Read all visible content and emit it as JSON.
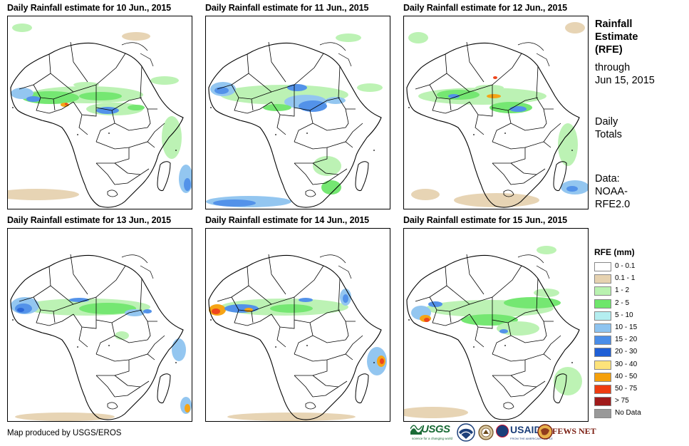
{
  "panels": [
    {
      "title": "Daily Rainfall estimate for 10 Jun., 2015"
    },
    {
      "title": "Daily Rainfall estimate for 11 Jun., 2015"
    },
    {
      "title": "Daily Rainfall estimate for 12 Jun., 2015"
    },
    {
      "title": "Daily Rainfall estimate for 13 Jun., 2015"
    },
    {
      "title": "Daily Rainfall estimate for 14 Jun., 2015"
    },
    {
      "title": "Daily Rainfall estimate for 15 Jun., 2015"
    }
  ],
  "sidebar": {
    "title_line1": "Rainfall",
    "title_line2": "Estimate",
    "title_line3": "(RFE)",
    "through_label": "through",
    "through_date": "Jun 15, 2015",
    "totals_line1": "Daily",
    "totals_line2": "Totals",
    "data_line1": "Data:",
    "data_line2": "NOAA-",
    "data_line3": "RFE2.0"
  },
  "legend": {
    "title": "RFE (mm)",
    "items": [
      {
        "label": "0 - 0.1",
        "color": "#ffffff"
      },
      {
        "label": "0.1 - 1",
        "color": "#e6d2b0"
      },
      {
        "label": "1 - 2",
        "color": "#b9f2b0"
      },
      {
        "label": "2 - 5",
        "color": "#6ee66b"
      },
      {
        "label": "5 - 10",
        "color": "#b4eef0"
      },
      {
        "label": "10 - 15",
        "color": "#8ec4f0"
      },
      {
        "label": "15 - 20",
        "color": "#4a8de8"
      },
      {
        "label": "20 - 30",
        "color": "#1f5fd6"
      },
      {
        "label": "30 - 40",
        "color": "#fde37a"
      },
      {
        "label": "40 - 50",
        "color": "#f5a00a"
      },
      {
        "label": "50 - 75",
        "color": "#ee3c10"
      },
      {
        "label": "> 75",
        "color": "#a01a1a"
      },
      {
        "label": "No Data",
        "color": "#999999"
      }
    ]
  },
  "footer": {
    "credit": "Map produced by USGS/EROS",
    "logos": {
      "usgs": "USGS",
      "usgs_tagline": "science for a changing world",
      "usaid": "USAID",
      "usaid_tagline": "FROM THE AMERICAN PEOPLE",
      "fews": "FEWS NET"
    }
  },
  "colors": {
    "border": "#000000",
    "usgs_green": "#1a6b36",
    "usaid_blue": "#1c3f7a",
    "fews_red": "#7b1e12"
  }
}
